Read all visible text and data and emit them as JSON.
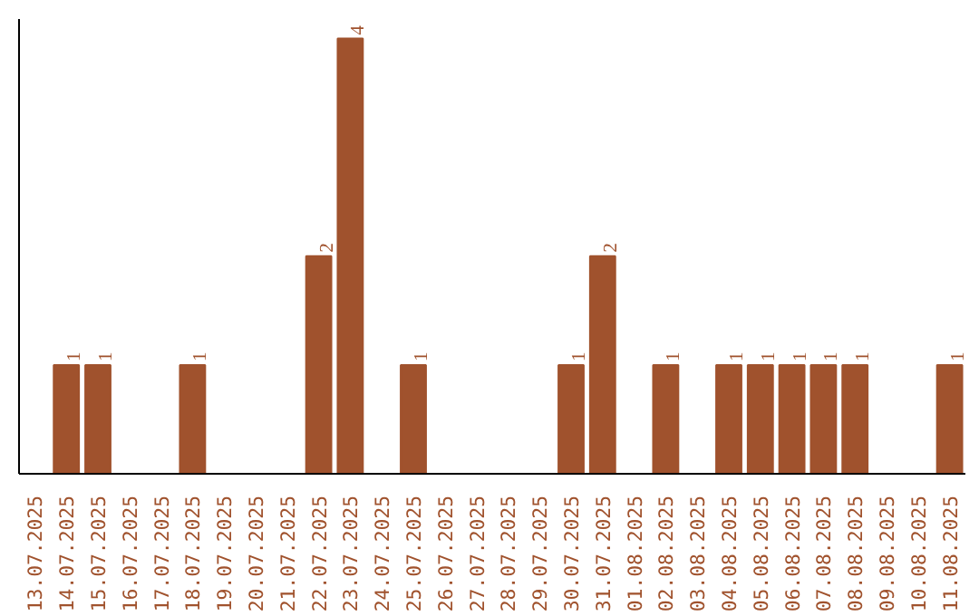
{
  "chart_data": {
    "type": "bar",
    "categories": [
      "13.07.2025",
      "14.07.2025",
      "15.07.2025",
      "16.07.2025",
      "17.07.2025",
      "18.07.2025",
      "19.07.2025",
      "20.07.2025",
      "21.07.2025",
      "22.07.2025",
      "23.07.2025",
      "24.07.2025",
      "25.07.2025",
      "26.07.2025",
      "27.07.2025",
      "28.07.2025",
      "29.07.2025",
      "30.07.2025",
      "31.07.2025",
      "01.08.2025",
      "02.08.2025",
      "03.08.2025",
      "04.08.2025",
      "05.08.2025",
      "06.08.2025",
      "07.08.2025",
      "08.08.2025",
      "09.08.2025",
      "10.08.2025",
      "11.08.2025"
    ],
    "values": [
      0,
      1,
      1,
      0,
      0,
      1,
      0,
      0,
      0,
      2,
      4,
      0,
      1,
      0,
      0,
      0,
      0,
      1,
      2,
      0,
      1,
      0,
      1,
      1,
      1,
      1,
      1,
      0,
      0,
      1
    ],
    "value_labels": [
      null,
      "1",
      "1",
      null,
      null,
      "1",
      null,
      null,
      null,
      "2",
      "4",
      null,
      "1",
      null,
      null,
      null,
      null,
      "1",
      "2",
      null,
      "1",
      null,
      "1",
      "1",
      "1",
      "1",
      "1",
      null,
      null,
      "1"
    ],
    "color": "#a0522d",
    "grid": false,
    "tick_labels": "x"
  }
}
